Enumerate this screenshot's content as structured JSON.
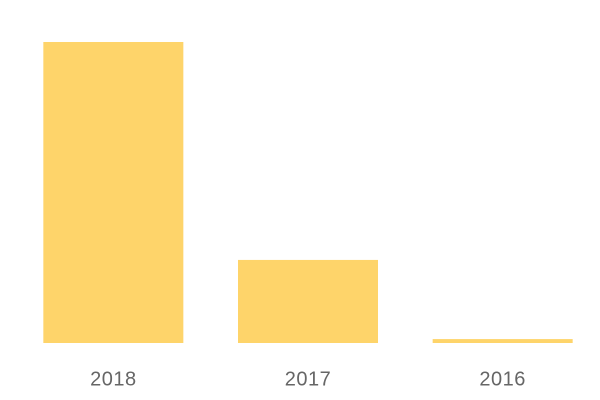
{
  "chart_data": {
    "type": "bar",
    "categories": [
      "2018",
      "2017",
      "2016"
    ],
    "values": [
      100,
      27.6,
      1.3
    ],
    "color": "#fed46a"
  }
}
